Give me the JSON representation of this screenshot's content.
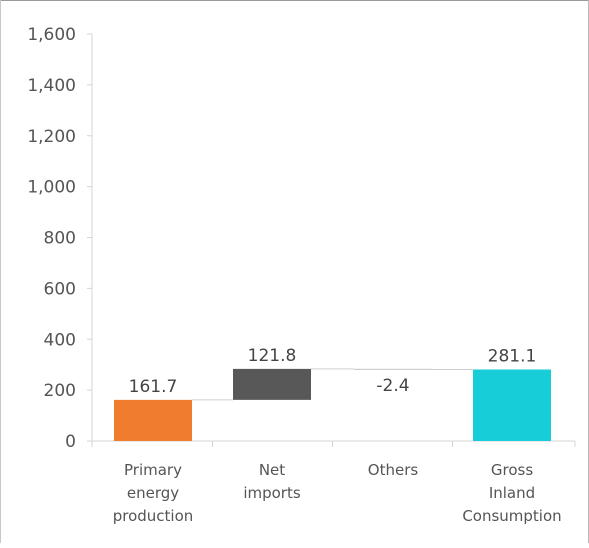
{
  "chart_data": {
    "type": "bar",
    "subtype": "waterfall",
    "title": "",
    "xlabel": "",
    "ylabel": "",
    "ylim": [
      0,
      1600
    ],
    "y_ticks": [
      0,
      200,
      400,
      600,
      800,
      1000,
      1200,
      1400,
      1600
    ],
    "y_tick_labels": [
      "0",
      "200",
      "400",
      "600",
      "800",
      "1,000",
      "1,200",
      "1,400",
      "1,600"
    ],
    "grid": false,
    "legend": "none",
    "categories": [
      [
        "Primary",
        "energy",
        "production"
      ],
      [
        "Net",
        "imports"
      ],
      [
        "Others"
      ],
      [
        "Gross",
        "Inland",
        "Consumption"
      ]
    ],
    "values": [
      161.7,
      121.8,
      -2.4,
      281.1
    ],
    "data_labels": [
      "161.7",
      "121.8",
      "-2.4",
      "281.1"
    ],
    "kinds": [
      "total",
      "delta",
      "delta",
      "total"
    ],
    "colors": [
      "#f07d2e",
      "#585858",
      "#9e9e9e",
      "#16cdd8"
    ]
  }
}
